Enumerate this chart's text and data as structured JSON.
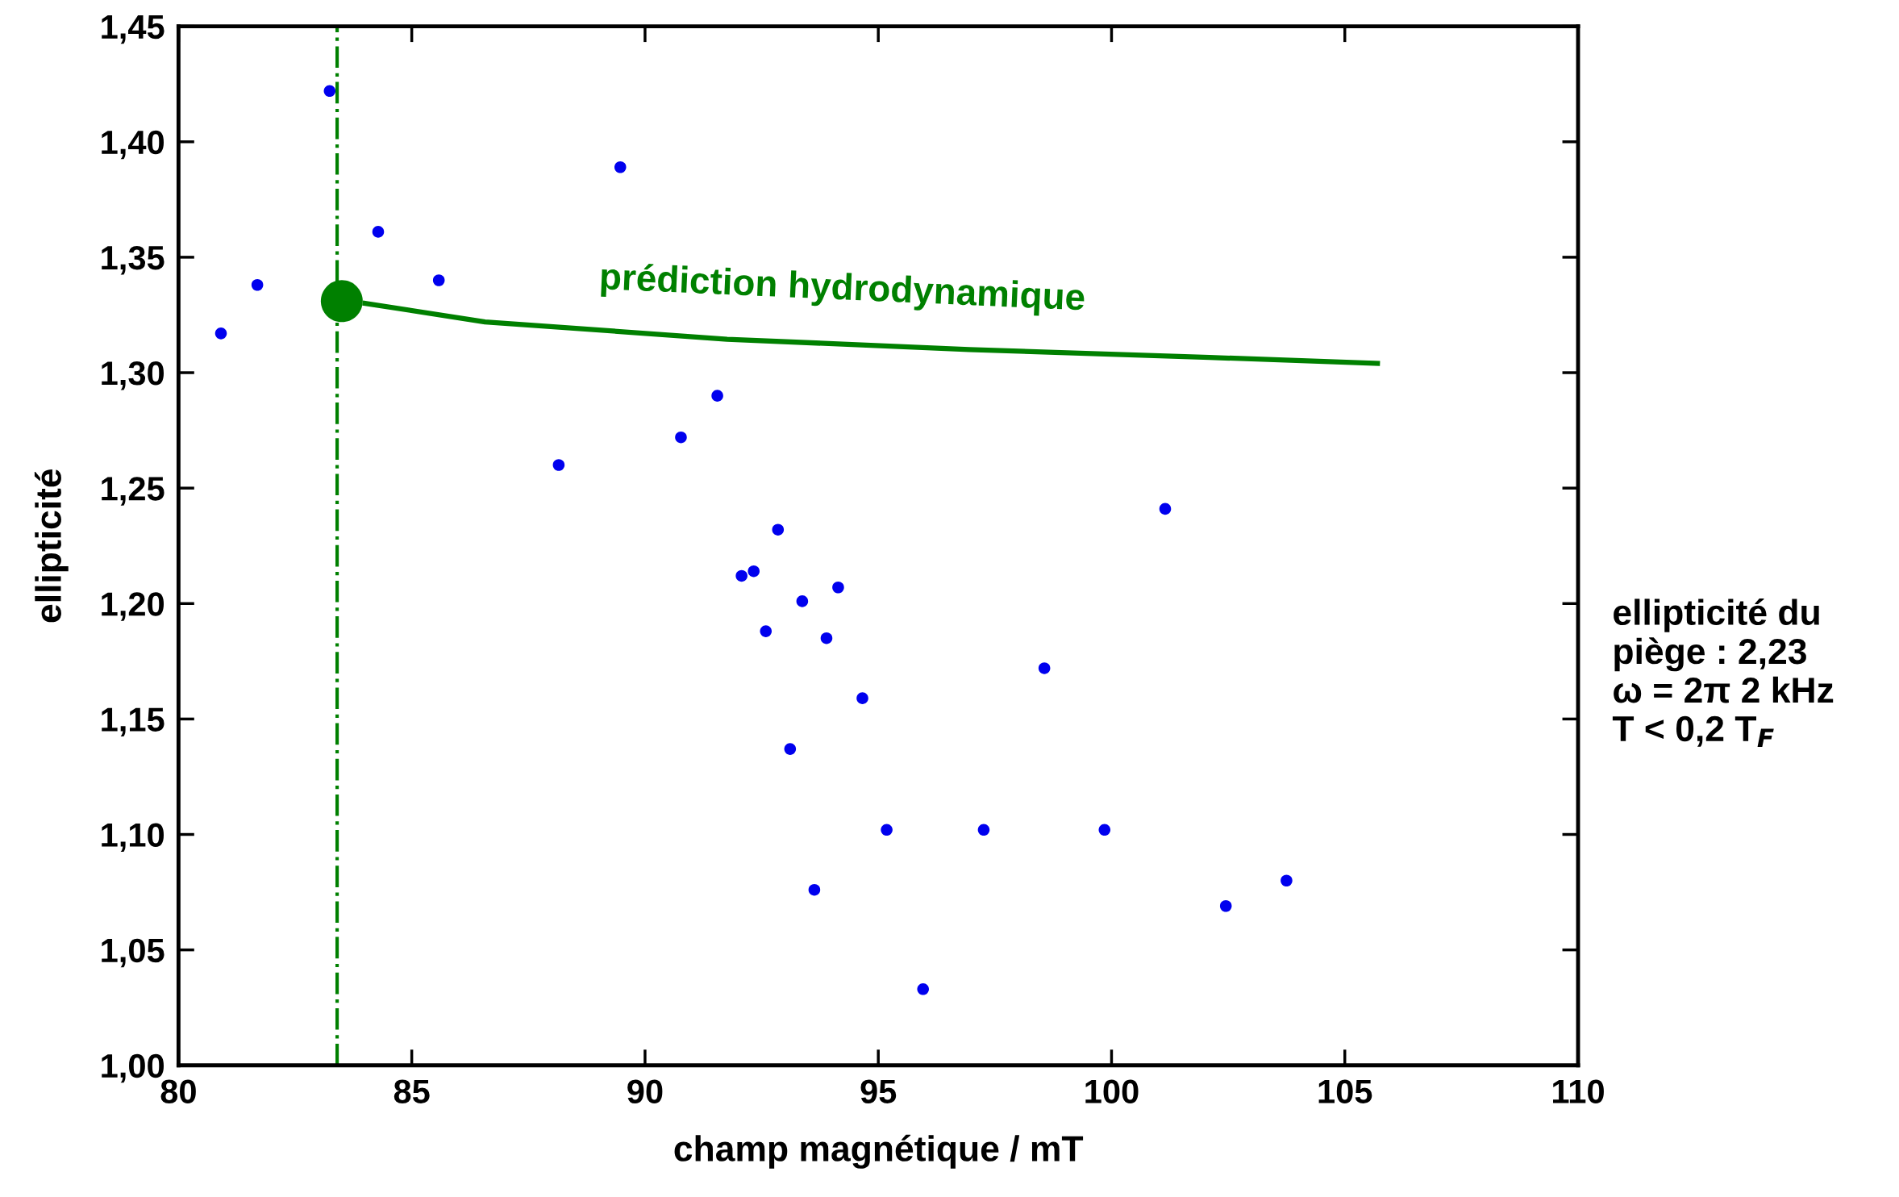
{
  "chart_data": {
    "type": "scatter",
    "xlabel": "champ magnétique / mT",
    "ylabel": "ellipticité",
    "xlim": [
      80,
      110
    ],
    "xticks": [
      80,
      85,
      90,
      95,
      100,
      105,
      110
    ],
    "ylim": [
      1.0,
      1.45
    ],
    "yticks": [
      {
        "value": 1.0,
        "label": "1,00"
      },
      {
        "value": 1.05,
        "label": "1,05"
      },
      {
        "value": 1.1,
        "label": "1,10"
      },
      {
        "value": 1.15,
        "label": "1,15"
      },
      {
        "value": 1.2,
        "label": "1,20"
      },
      {
        "value": 1.25,
        "label": "1,25"
      },
      {
        "value": 1.3,
        "label": "1,30"
      },
      {
        "value": 1.35,
        "label": "1,35"
      },
      {
        "value": 1.4,
        "label": "1,40"
      },
      {
        "value": 1.45,
        "label": "1,45"
      }
    ],
    "grid": false,
    "legend": false,
    "series": [
      {
        "color": "#0000ee",
        "marker": "circle",
        "x": [
          80.91,
          81.69,
          83.24,
          84.28,
          85.58,
          88.15,
          89.47,
          90.77,
          91.55,
          92.85,
          92.07,
          92.33,
          92.59,
          93.37,
          93.89,
          94.14,
          94.66,
          93.11,
          95.18,
          93.63,
          95.96,
          97.26,
          98.56,
          99.85,
          101.15,
          102.45,
          103.75
        ],
        "values": [
          1.317,
          1.338,
          1.422,
          1.361,
          1.34,
          1.26,
          1.389,
          1.272,
          1.29,
          1.232,
          1.212,
          1.214,
          1.188,
          1.201,
          1.185,
          1.207,
          1.159,
          1.137,
          1.102,
          1.076,
          1.033,
          1.102,
          1.172,
          1.102,
          1.241,
          1.069,
          1.08
        ]
      },
      {
        "type": "line",
        "color": "#008000",
        "marker": "none",
        "x": [
          84.0,
          86.57,
          91.76,
          96.95,
          102.1,
          105.7
        ],
        "values": [
          1.33,
          1.322,
          1.3145,
          1.31,
          1.3066,
          1.304
        ]
      },
      {
        "type": "bubble",
        "color": "#008000",
        "x": [
          83.5
        ],
        "values": [
          1.331
        ],
        "sizes": [
          1
        ]
      }
    ],
    "ref_lines": [
      {
        "axis": "x",
        "value": 83.4,
        "color": "#008000",
        "line_style": "dashdot"
      }
    ],
    "annotations": [
      "prédiction hydrodynamique",
      "ellipticité du\npiège : 2,23\nω = 2π 2 kHz\nT < 0,2 T$_{F}$"
    ]
  }
}
